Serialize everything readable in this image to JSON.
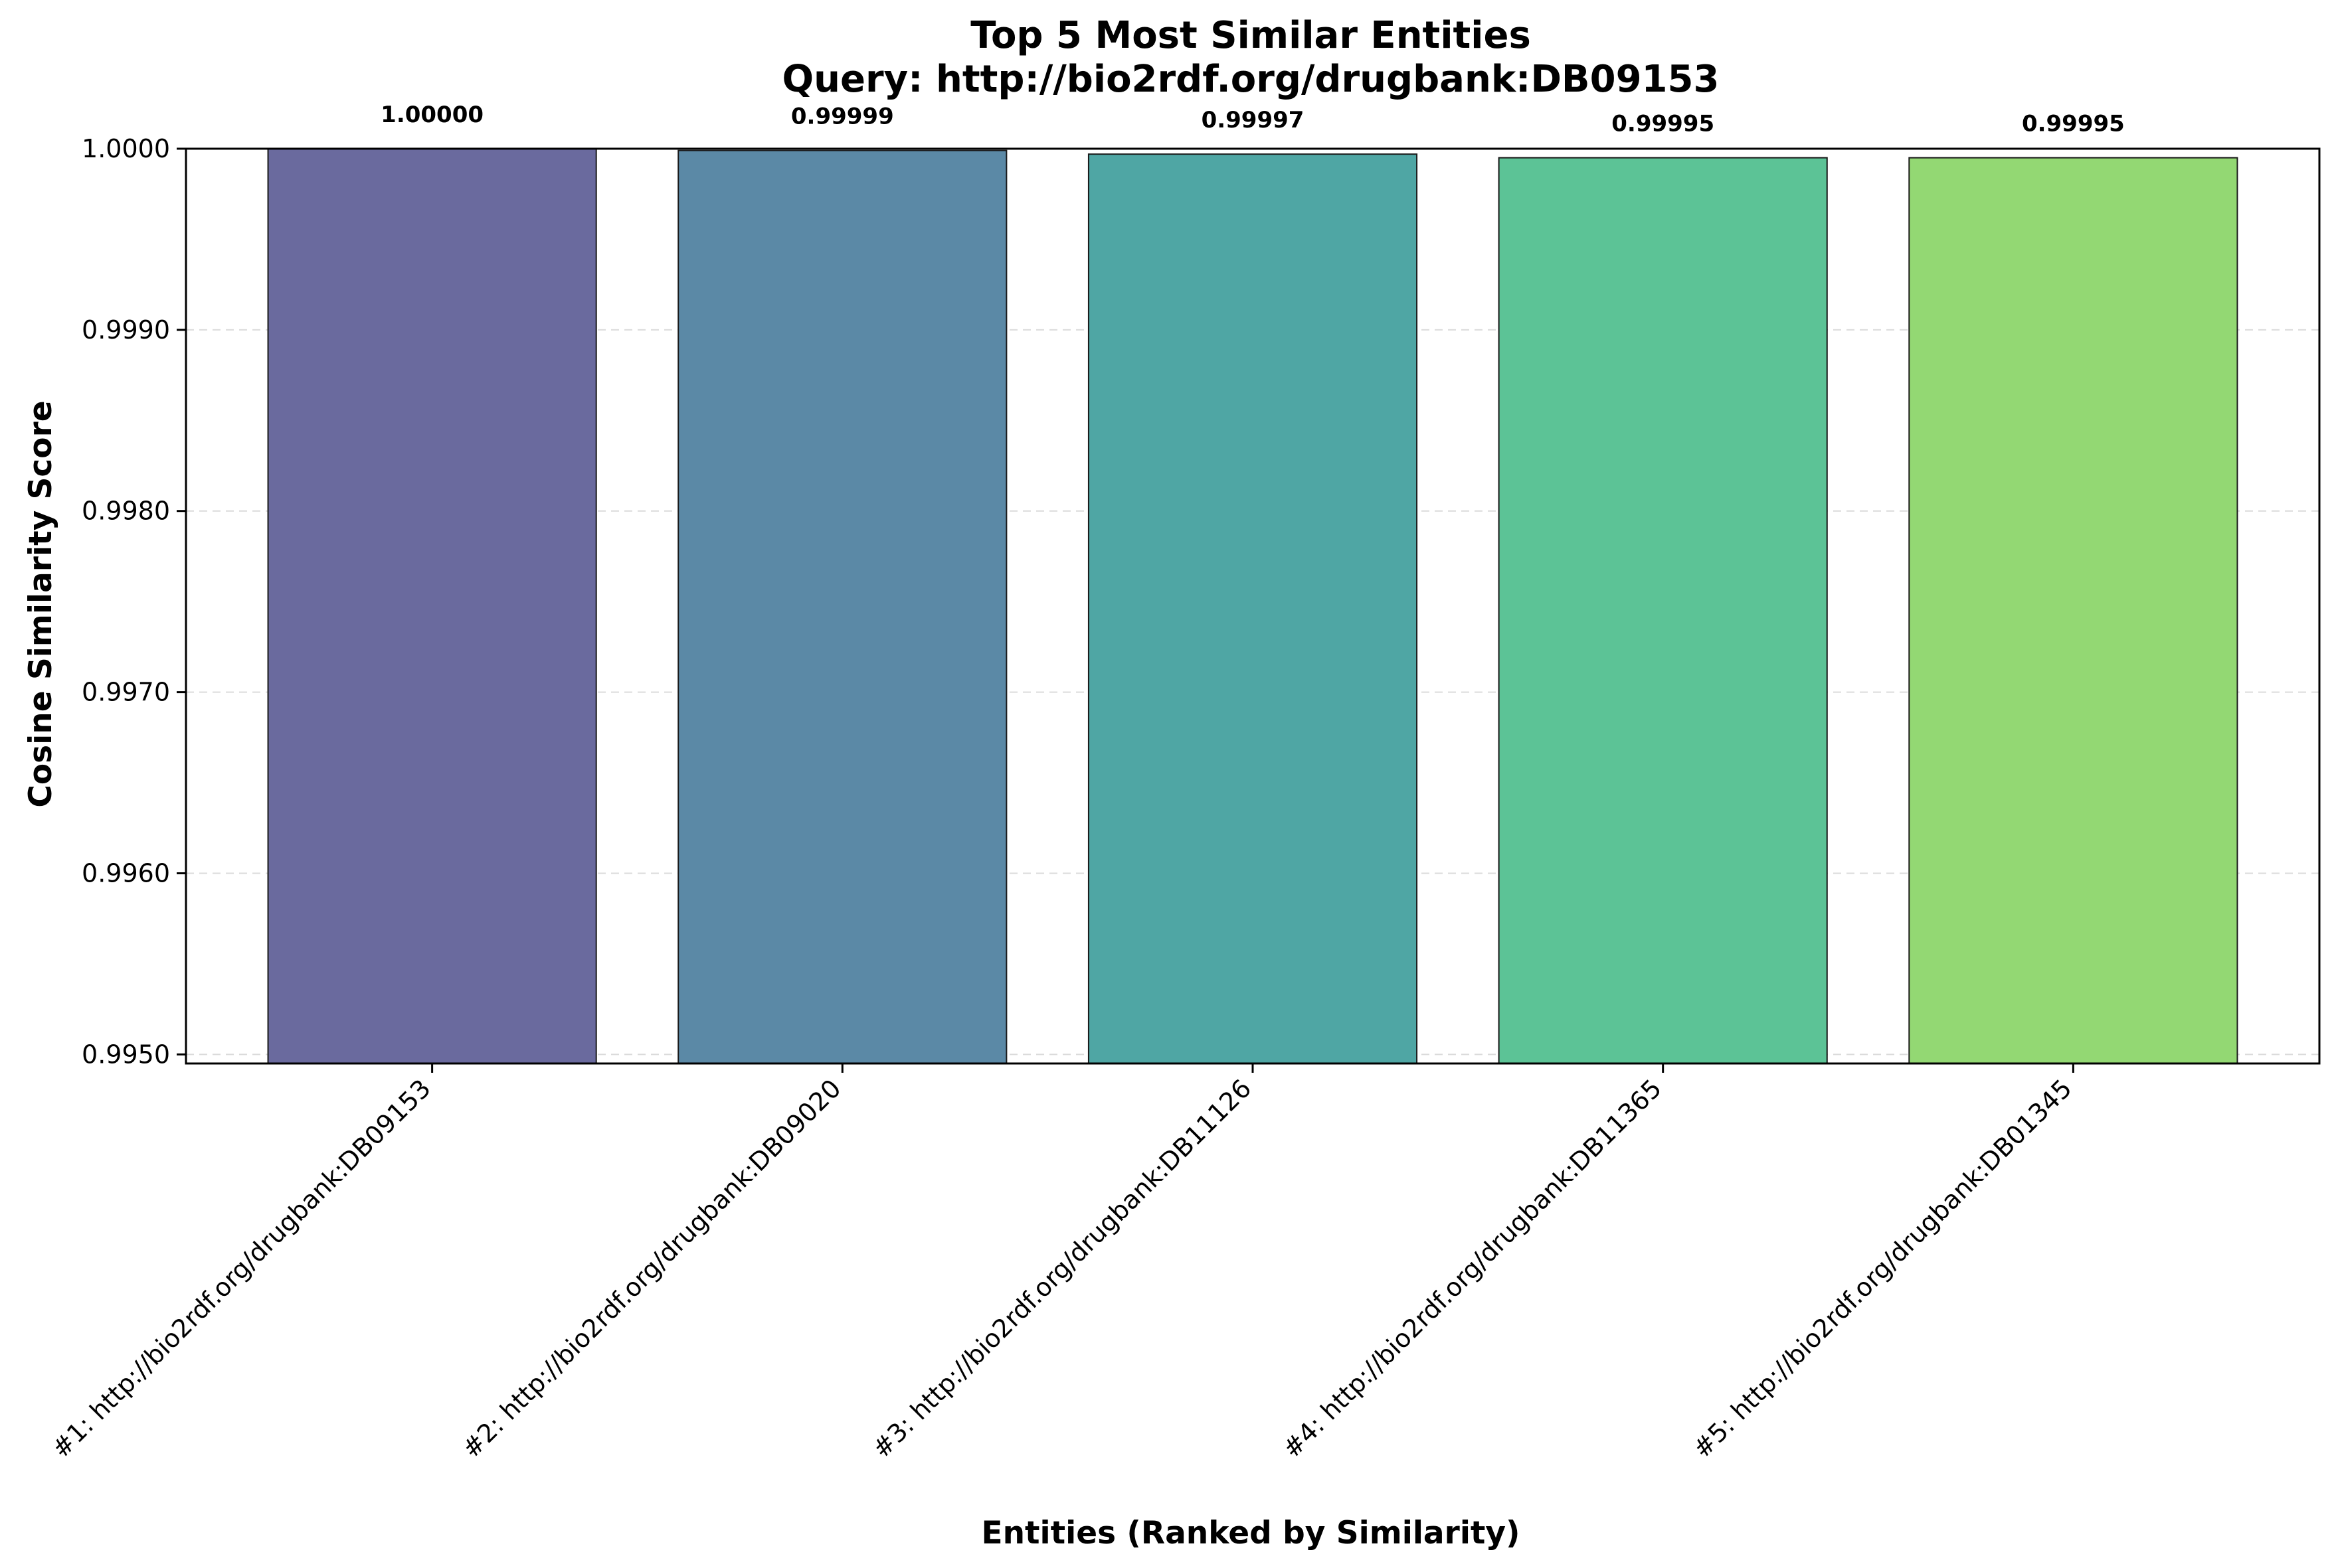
{
  "chart_data": {
    "type": "bar",
    "title": "Top 5 Most Similar Entities",
    "subtitle": "Query: http://bio2rdf.org/drugbank:DB09153",
    "xlabel": "Entities (Ranked by Similarity)",
    "ylabel": "Cosine Similarity Score",
    "ylim": [
      0.99495,
      1.0
    ],
    "yticks": [
      0.995,
      0.996,
      0.997,
      0.998,
      0.999,
      1.0
    ],
    "ytick_labels": [
      "0.9950",
      "0.9960",
      "0.9970",
      "0.9980",
      "0.9990",
      "1.0000"
    ],
    "grid": "y-dashed",
    "categories": [
      "#1: http://bio2rdf.org/drugbank:DB09153",
      "#2: http://bio2rdf.org/drugbank:DB09020",
      "#3: http://bio2rdf.org/drugbank:DB11126",
      "#4: http://bio2rdf.org/drugbank:DB11365",
      "#5: http://bio2rdf.org/drugbank:DB01345"
    ],
    "values": [
      1.0,
      0.99999,
      0.99997,
      0.99995,
      0.99995
    ],
    "value_labels": [
      "1.00000",
      "0.99999",
      "0.99997",
      "0.99995",
      "0.99995"
    ],
    "colors": [
      "#6a6a9e",
      "#5b89a6",
      "#4fa6a4",
      "#5cc396",
      "#93d873"
    ]
  }
}
